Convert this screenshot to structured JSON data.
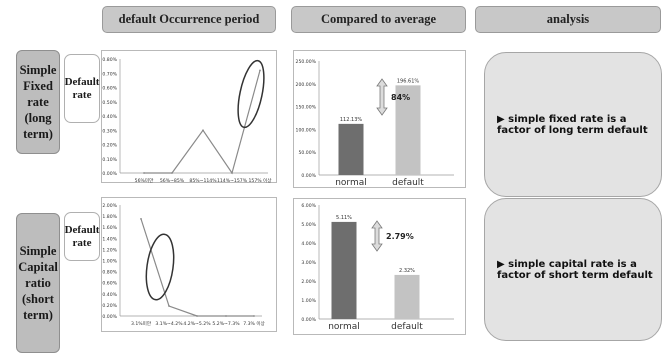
{
  "headers": [
    "default Occurrence period",
    "Compared to average",
    "analysis"
  ],
  "rows": [
    {
      "label": [
        "Simple",
        "Fixed",
        "rate",
        "(long",
        "term)"
      ],
      "rate_box": [
        "Default",
        "rate"
      ],
      "analysis": "▶ simple fixed rate is a factor of long term default"
    },
    {
      "label": [
        "Simple",
        "Capital",
        "ratio",
        "(short",
        "term)"
      ],
      "rate_box": [
        "Default",
        "rate"
      ],
      "analysis": "▶ simple capital rate is a factor of short term default"
    }
  ],
  "chart_data": [
    {
      "type": "line",
      "categories": [
        "56%미만",
        "56%~85%",
        "85%~114%",
        "114%~157%",
        "157% 이상"
      ],
      "values": [
        0.0,
        0.0,
        0.3,
        0.0,
        0.72
      ],
      "y_ticks": [
        "0.00%",
        "0.10%",
        "0.20%",
        "0.30%",
        "0.40%",
        "0.50%",
        "0.60%",
        "0.70%",
        "0.80%"
      ],
      "ylim": [
        0,
        0.8
      ],
      "annotation": "ellipse around 157% 이상"
    },
    {
      "type": "bar",
      "categories": [
        "normal",
        "default"
      ],
      "values": [
        112.13,
        196.61
      ],
      "value_labels": [
        "112.13%",
        "196.61%"
      ],
      "y_ticks": [
        "0.00%",
        "50.00%",
        "100.00%",
        "150.00%",
        "200.00%",
        "250.00%"
      ],
      "ylim": [
        0,
        250
      ],
      "annotation": "84%",
      "colors": [
        "#6e6e6e",
        "#c3c3c3"
      ]
    },
    {
      "type": "line",
      "categories": [
        "3.1%미만",
        "3.1%~4.2%",
        "4.2%~5.2%",
        "5.2%~7.3%",
        "7.3% 이상"
      ],
      "values": [
        1.75,
        0.18,
        0.0,
        0.0,
        0.0
      ],
      "y_ticks": [
        "0.00%",
        "0.20%",
        "0.40%",
        "0.60%",
        "0.80%",
        "1.00%",
        "1.20%",
        "1.40%",
        "1.60%",
        "1.80%",
        "2.00%"
      ],
      "ylim": [
        0,
        2.0
      ],
      "annotation": "ellipse around 3.1%~4.2%"
    },
    {
      "type": "bar",
      "categories": [
        "normal",
        "default"
      ],
      "values": [
        5.11,
        2.32
      ],
      "value_labels": [
        "5.11%",
        "2.32%"
      ],
      "y_ticks": [
        "0.00%",
        "1.00%",
        "2.00%",
        "3.00%",
        "4.00%",
        "5.00%",
        "6.00%"
      ],
      "ylim": [
        0,
        6.0
      ],
      "annotation": "2.79%",
      "colors": [
        "#6e6e6e",
        "#c3c3c3"
      ]
    }
  ]
}
